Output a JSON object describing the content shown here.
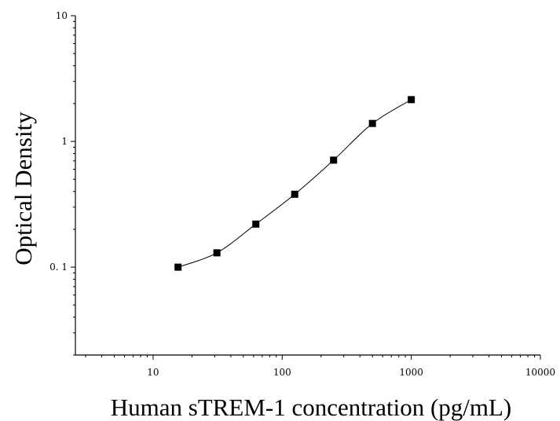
{
  "chart_data": {
    "type": "scatter",
    "title": "",
    "xlabel": "Human sTREM-1 concentration (pg/mL)",
    "ylabel": "Optical Density",
    "xscale": "log",
    "yscale": "log",
    "xlim": [
      2.5,
      10000
    ],
    "ylim": [
      0.02,
      10
    ],
    "xticks": [
      {
        "value": 10,
        "label": "10"
      },
      {
        "value": 100,
        "label": "100"
      },
      {
        "value": 1000,
        "label": "1000"
      },
      {
        "value": 10000,
        "label": "10000"
      }
    ],
    "yticks": [
      {
        "value": 0.1,
        "label": "0. 1"
      },
      {
        "value": 1,
        "label": "1"
      },
      {
        "value": 10,
        "label": "10"
      }
    ],
    "grid": false,
    "legend": "none",
    "series": [
      {
        "marker": "square",
        "color": "#000000",
        "points": [
          {
            "x": 15.6,
            "y": 0.1
          },
          {
            "x": 31.2,
            "y": 0.13
          },
          {
            "x": 62.5,
            "y": 0.22
          },
          {
            "x": 125,
            "y": 0.38
          },
          {
            "x": 250,
            "y": 0.71
          },
          {
            "x": 500,
            "y": 1.39
          },
          {
            "x": 1000,
            "y": 2.15
          }
        ]
      }
    ],
    "fit_curve": {
      "color": "#000000",
      "style": "smooth line through points"
    }
  }
}
